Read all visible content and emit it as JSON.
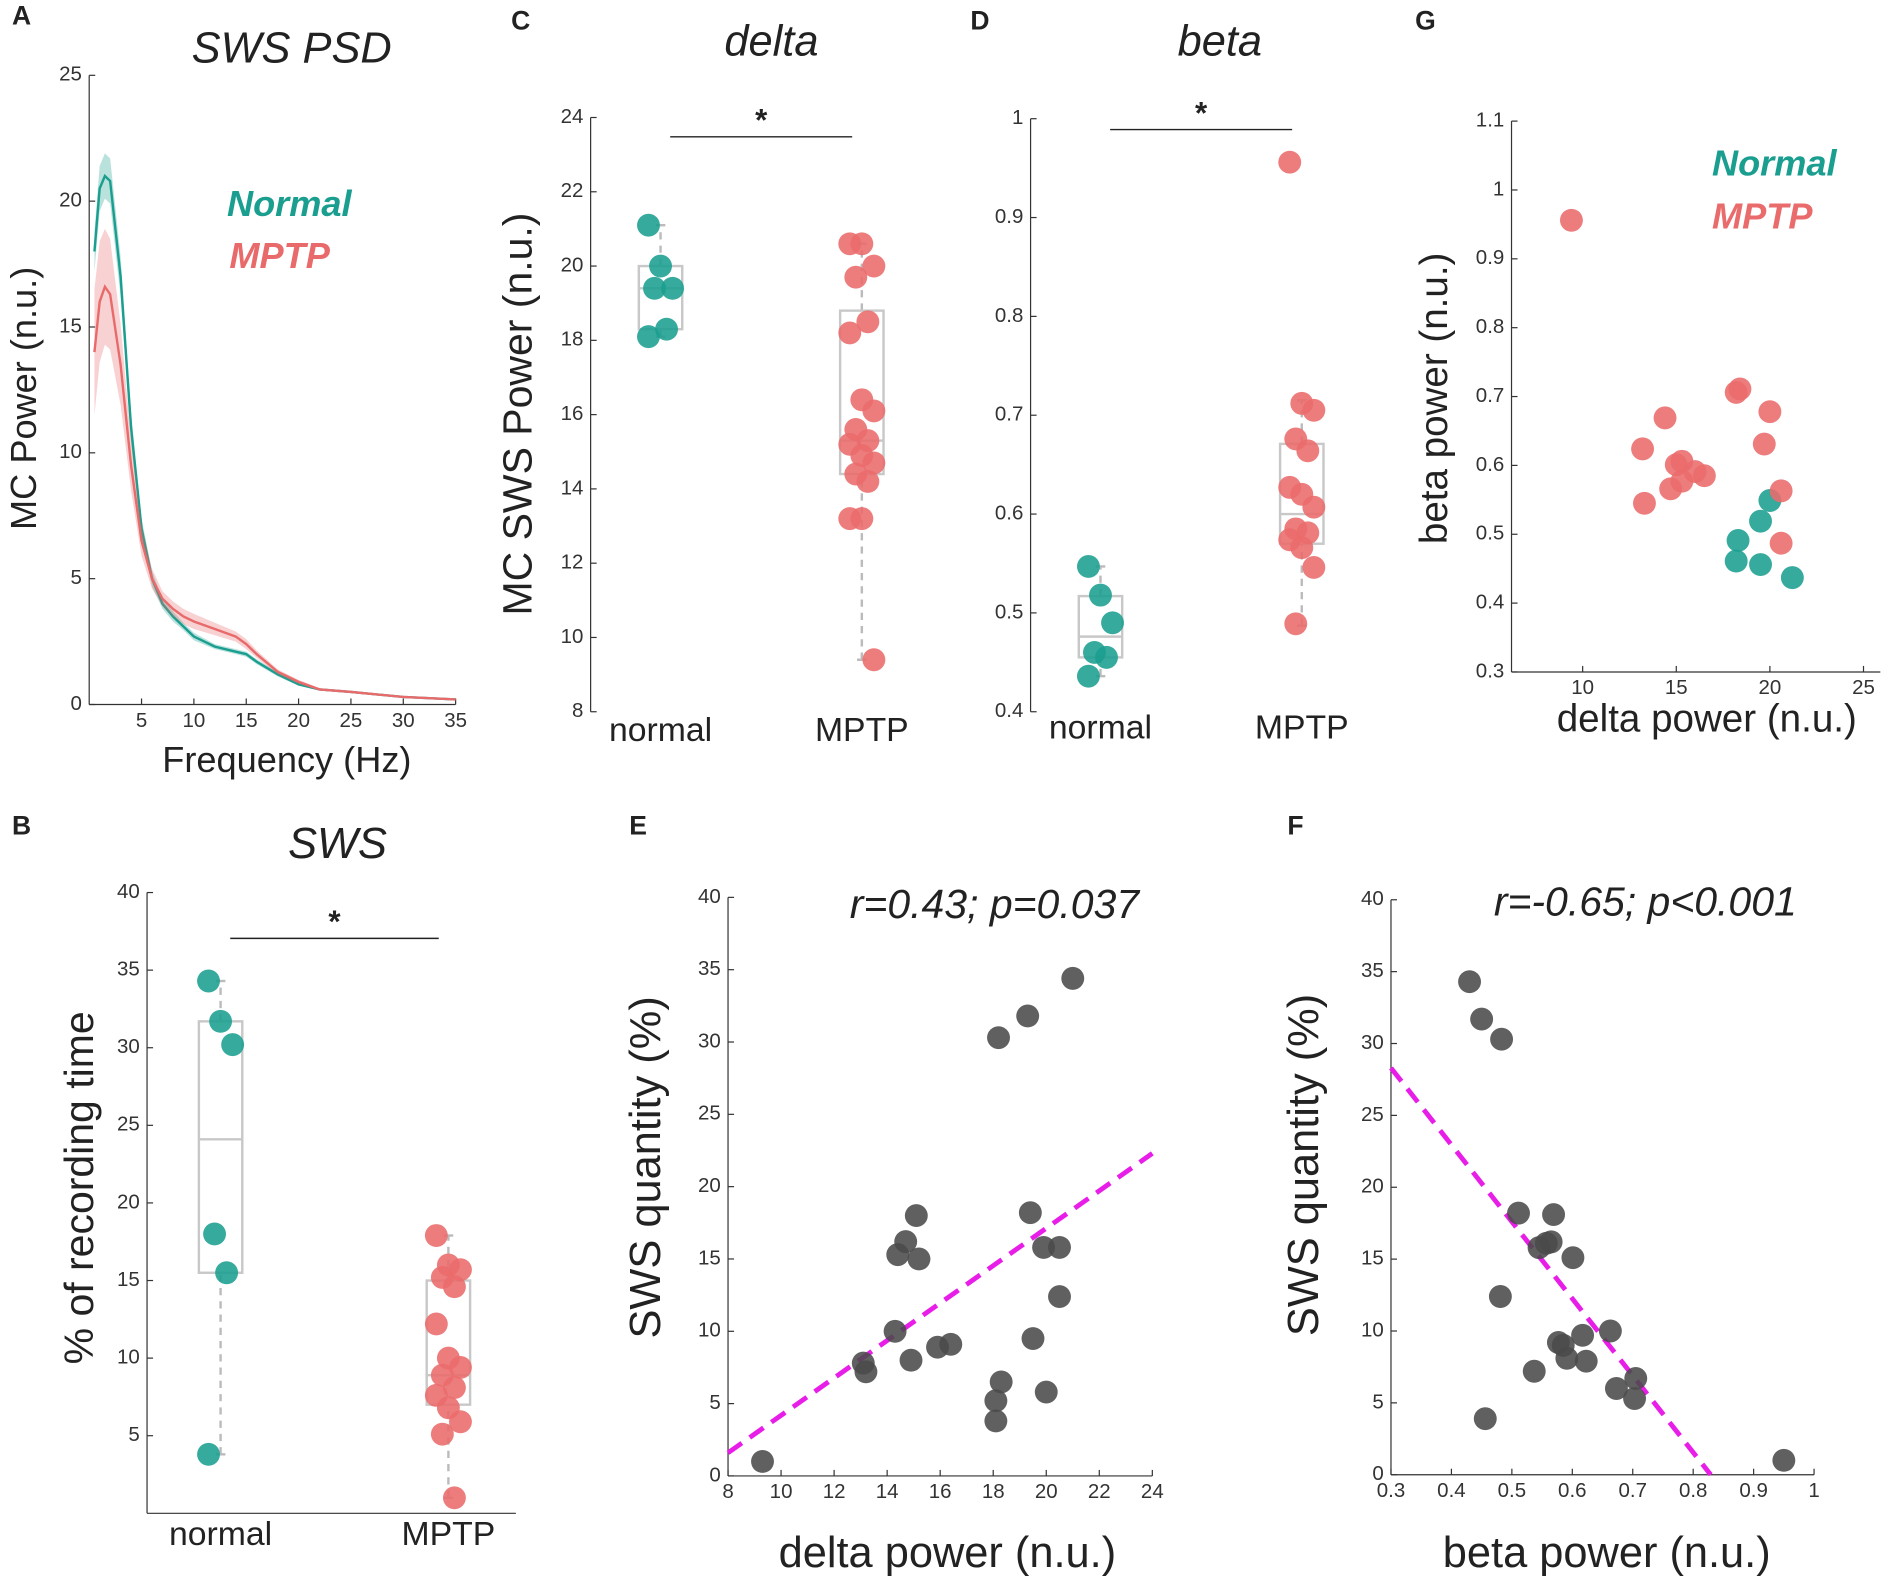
{
  "chart_data": [
    {
      "type": "line",
      "panel": "A",
      "title": "SWS PSD",
      "xlabel": "Frequency (Hz)",
      "ylabel": "MC Power (n.u.)",
      "xlim": [
        0,
        35
      ],
      "ylim": [
        0,
        25
      ],
      "xticks": [
        5,
        10,
        15,
        20,
        25,
        30,
        35
      ],
      "yticks": [
        0,
        5,
        10,
        15,
        20,
        25
      ],
      "x": [
        0.5,
        1,
        1.5,
        2,
        3,
        4,
        5,
        6,
        7,
        8,
        9,
        10,
        12,
        14,
        15,
        16,
        18,
        20,
        22,
        25,
        30,
        35
      ],
      "series": [
        {
          "name": "Normal",
          "color": "#1a9e8f",
          "values": [
            18,
            20.5,
            21,
            20.8,
            17,
            11,
            7,
            5,
            4,
            3.5,
            3.1,
            2.7,
            2.3,
            2.1,
            2,
            1.7,
            1.2,
            0.8,
            0.6,
            0.5,
            0.3,
            0.2
          ],
          "error": [
            0.8,
            0.9,
            0.9,
            0.9,
            0.8,
            0.6,
            0.4,
            0.3,
            0.2,
            0.2,
            0.15,
            0.15,
            0.1,
            0.1,
            0.1,
            0.1,
            0.08,
            0.05,
            0.05,
            0.05,
            0.03,
            0.03
          ]
        },
        {
          "name": "MPTP",
          "color": "#e86a6b",
          "values": [
            14,
            16,
            16.6,
            16.3,
            13.5,
            9.5,
            6.5,
            5,
            4.2,
            3.8,
            3.5,
            3.3,
            3,
            2.7,
            2.4,
            2,
            1.3,
            0.9,
            0.6,
            0.5,
            0.3,
            0.2
          ],
          "error": [
            2.5,
            2.4,
            2.3,
            2.2,
            1.6,
            1,
            0.6,
            0.4,
            0.3,
            0.3,
            0.3,
            0.3,
            0.25,
            0.2,
            0.2,
            0.15,
            0.1,
            0.08,
            0.05,
            0.05,
            0.03,
            0.03
          ]
        }
      ]
    },
    {
      "type": "box",
      "panel": "B",
      "title": "SWS",
      "ylabel": "% of recording time",
      "significance": "*",
      "ylim": [
        0,
        40
      ],
      "yticks": [
        5,
        10,
        15,
        20,
        25,
        30,
        35,
        40
      ],
      "groups": [
        {
          "name": "normal",
          "color": "#1a9e8f",
          "points": [
            34.3,
            31.7,
            30.2,
            18.0,
            15.5,
            3.8
          ],
          "box": {
            "whisker_low": 3.8,
            "q1": 15.5,
            "median": 24.1,
            "q3": 31.7,
            "whisker_high": 34.3
          }
        },
        {
          "name": "MPTP",
          "color": "#ea6b6b",
          "points": [
            17.9,
            16.0,
            15.7,
            15.2,
            14.6,
            12.2,
            10.0,
            9.4,
            8.9,
            8.1,
            7.6,
            6.8,
            5.9,
            5.1,
            1.0
          ],
          "box": {
            "whisker_low": 1.0,
            "q1": 7.0,
            "median": 8.9,
            "q3": 15.0,
            "whisker_high": 17.9
          }
        }
      ]
    },
    {
      "type": "box",
      "panel": "C",
      "title": "delta",
      "ylabel": "MC SWS Power (n.u.)",
      "significance": "*",
      "ylim": [
        8,
        24
      ],
      "yticks": [
        8,
        10,
        12,
        14,
        16,
        18,
        20,
        22,
        24
      ],
      "groups": [
        {
          "name": "normal",
          "color": "#1a9e8f",
          "points": [
            21.1,
            20.0,
            19.4,
            19.4,
            18.3,
            18.1
          ],
          "box": {
            "whisker_low": 18.1,
            "q1": 18.3,
            "median": 19.4,
            "q3": 20.0,
            "whisker_high": 21.1
          }
        },
        {
          "name": "MPTP",
          "color": "#ea6b6b",
          "points": [
            20.6,
            20.6,
            20.0,
            19.7,
            18.5,
            18.2,
            16.4,
            16.1,
            15.6,
            15.3,
            15.2,
            14.9,
            14.7,
            14.4,
            14.2,
            13.2,
            13.2,
            9.4
          ],
          "box": {
            "whisker_low": 9.4,
            "q1": 14.4,
            "median": 15.3,
            "q3": 18.8,
            "whisker_high": 20.6
          }
        }
      ]
    },
    {
      "type": "box",
      "panel": "D",
      "title": "beta",
      "significance": "*",
      "ylim": [
        0.4,
        1
      ],
      "yticks": [
        0.4,
        0.5,
        0.6,
        0.7,
        0.8,
        0.9,
        1
      ],
      "groups": [
        {
          "name": "normal",
          "color": "#1a9e8f",
          "points": [
            0.547,
            0.518,
            0.49,
            0.46,
            0.455,
            0.436
          ],
          "box": {
            "whisker_low": 0.436,
            "q1": 0.455,
            "median": 0.476,
            "q3": 0.517,
            "whisker_high": 0.547
          }
        },
        {
          "name": "MPTP",
          "color": "#ea6b6b",
          "points": [
            0.956,
            0.712,
            0.705,
            0.676,
            0.664,
            0.627,
            0.62,
            0.607,
            0.585,
            0.581,
            0.574,
            0.566,
            0.546,
            0.489
          ],
          "box": {
            "whisker_low": 0.487,
            "q1": 0.57,
            "median": 0.6,
            "q3": 0.671,
            "whisker_high": 0.715
          }
        }
      ]
    },
    {
      "type": "scatter",
      "panel": "E",
      "annotation": "r=0.43; p=0.037",
      "xlabel": "delta power (n.u.)",
      "ylabel": "SWS quantity (%)",
      "xlim": [
        8,
        24
      ],
      "ylim": [
        0,
        40
      ],
      "xticks": [
        8,
        10,
        12,
        14,
        16,
        18,
        20,
        22,
        24
      ],
      "yticks": [
        0,
        5,
        10,
        15,
        20,
        25,
        30,
        35,
        40
      ],
      "series": [
        {
          "color": "#4a4a4a",
          "x": [
            9.3,
            13.1,
            13.2,
            14.3,
            14.4,
            14.9,
            14.7,
            15.1,
            15.2,
            15.9,
            16.4,
            18.1,
            18.1,
            18.3,
            18.2,
            19.3,
            19.4,
            19.5,
            19.9,
            20.0,
            20.5,
            20.5,
            21.0
          ],
          "y": [
            1.0,
            7.8,
            7.2,
            10.0,
            15.3,
            8.0,
            16.2,
            18.0,
            15.0,
            8.9,
            9.1,
            3.8,
            5.2,
            6.5,
            30.3,
            31.8,
            18.2,
            9.5,
            15.8,
            5.8,
            15.8,
            12.4,
            34.4
          ]
        }
      ],
      "fit": {
        "color": "#e81ee8",
        "x": [
          8,
          24
        ],
        "y": [
          1.6,
          22.3
        ]
      }
    },
    {
      "type": "scatter",
      "panel": "F",
      "annotation": "r=-0.65; p<0.001",
      "xlabel": "beta power (n.u.)",
      "ylabel": "SWS quantity (%)",
      "xlim": [
        0.3,
        1
      ],
      "ylim": [
        0,
        40
      ],
      "xticks": [
        0.3,
        0.4,
        0.5,
        0.6,
        0.7,
        0.8,
        0.9,
        1
      ],
      "yticks": [
        0,
        5,
        10,
        15,
        20,
        25,
        30,
        35,
        40
      ],
      "series": [
        {
          "color": "#4a4a4a",
          "x": [
            0.43,
            0.45,
            0.483,
            0.511,
            0.481,
            0.456,
            0.537,
            0.545,
            0.557,
            0.569,
            0.565,
            0.601,
            0.577,
            0.585,
            0.591,
            0.617,
            0.623,
            0.663,
            0.673,
            0.705,
            0.703,
            0.95
          ],
          "y": [
            34.3,
            31.7,
            30.3,
            18.2,
            12.4,
            3.9,
            7.2,
            15.8,
            16.1,
            18.1,
            16.2,
            15.1,
            9.2,
            9.0,
            8.1,
            9.7,
            7.9,
            10.0,
            6.0,
            6.7,
            5.3,
            1.0
          ]
        }
      ],
      "fit": {
        "color": "#e81ee8",
        "x": [
          0.3,
          0.829
        ],
        "y": [
          28.3,
          0
        ]
      }
    },
    {
      "type": "scatter",
      "panel": "G",
      "xlabel": "delta power (n.u.)",
      "ylabel": "beta power (n.u.)",
      "xlim": [
        6.2,
        25.9
      ],
      "ylim": [
        0.3,
        1.1
      ],
      "xticks": [
        10,
        15,
        20,
        25
      ],
      "yticks": [
        0.3,
        0.4,
        0.5,
        0.6,
        0.7,
        0.8,
        0.9,
        1,
        1.1
      ],
      "series": [
        {
          "name": "Normal",
          "color": "#1a9e8f",
          "x": [
            20.0,
            19.5,
            18.3,
            18.2,
            19.5,
            21.2
          ],
          "y": [
            0.549,
            0.519,
            0.491,
            0.461,
            0.456,
            0.437
          ]
        },
        {
          "name": "MPTP",
          "color": "#ea6b6b",
          "x": [
            9.4,
            14.4,
            13.2,
            13.3,
            14.7,
            15.3,
            15.0,
            15.3,
            16.0,
            16.5,
            18.2,
            18.4,
            20.0,
            19.7,
            20.6,
            20.6
          ],
          "y": [
            0.956,
            0.669,
            0.624,
            0.545,
            0.566,
            0.577,
            0.601,
            0.606,
            0.591,
            0.585,
            0.706,
            0.711,
            0.678,
            0.631,
            0.563,
            0.487
          ]
        }
      ]
    }
  ]
}
